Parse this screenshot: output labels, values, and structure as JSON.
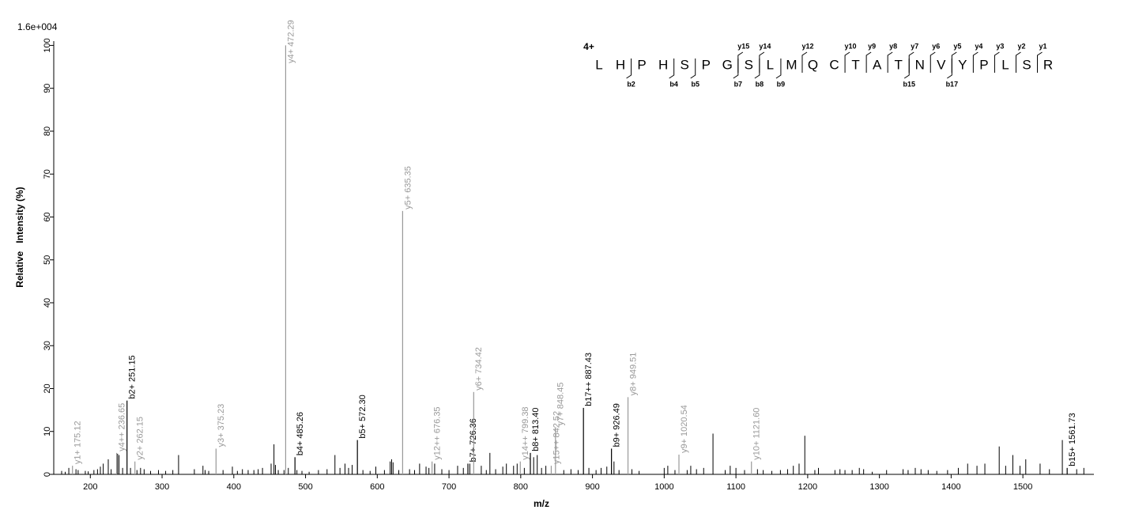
{
  "chart_data": {
    "type": "spectrum",
    "intensity_scale": "1.6e+004",
    "y_axis_label": "Relative   Intensity (%)",
    "x_axis_label": "m/z",
    "xlim": [
      149,
      1599
    ],
    "ylim": [
      0,
      101
    ],
    "xticks": [
      200,
      300,
      400,
      500,
      600,
      700,
      800,
      900,
      1000,
      1100,
      1200,
      1300,
      1400,
      1500
    ],
    "yticks": [
      0,
      10,
      20,
      30,
      40,
      50,
      60,
      70,
      80,
      90,
      100
    ],
    "peaks": {
      "x": [
        160,
        165,
        170,
        180,
        183,
        193,
        197,
        205,
        210,
        214,
        218,
        225,
        229,
        238,
        240,
        245,
        256,
        265,
        270,
        275,
        284,
        295,
        305,
        315,
        323,
        345,
        357,
        360,
        365,
        385,
        398,
        405,
        412,
        420,
        428,
        434,
        440,
        452,
        456,
        458,
        462,
        470,
        476,
        488,
        495,
        505,
        518,
        530,
        541,
        548,
        555,
        560,
        565,
        580,
        590,
        598,
        610,
        618,
        620,
        622,
        630,
        645,
        652,
        659,
        668,
        672,
        680,
        690,
        700,
        712,
        720,
        729,
        745,
        752,
        757,
        765,
        775,
        780,
        790,
        795,
        805,
        818,
        823,
        829,
        835,
        860,
        870,
        880,
        895,
        905,
        912,
        920,
        930,
        937,
        955,
        965,
        1000,
        1005,
        1015,
        1032,
        1037,
        1045,
        1055,
        1068,
        1085,
        1092,
        1100,
        1112,
        1130,
        1138,
        1150,
        1162,
        1172,
        1180,
        1188,
        1196,
        1210,
        1215,
        1238,
        1245,
        1252,
        1262,
        1272,
        1278,
        1290,
        1310,
        1333,
        1340,
        1350,
        1358,
        1368,
        1380,
        1395,
        1410,
        1423,
        1436,
        1447,
        1467,
        1476,
        1486,
        1496,
        1504,
        1524,
        1537,
        1555,
        1575,
        1585
      ],
      "values": [
        0.8,
        0.6,
        1.5,
        1.2,
        1.0,
        0.8,
        0.7,
        1.0,
        1.2,
        1.8,
        2.5,
        3.5,
        1.2,
        4.8,
        4.5,
        1.5,
        1.5,
        1.0,
        1.5,
        1.2,
        0.8,
        1.0,
        0.8,
        1.0,
        4.5,
        1.2,
        2.0,
        1.0,
        0.8,
        1.0,
        1.8,
        0.8,
        1.2,
        1.0,
        1.0,
        1.2,
        1.5,
        2.5,
        7.0,
        2.2,
        1.0,
        1.0,
        1.5,
        1.0,
        0.8,
        0.6,
        1.0,
        1.2,
        4.5,
        1.5,
        2.5,
        1.5,
        2.2,
        1.0,
        0.8,
        1.8,
        1.0,
        3.0,
        3.5,
        2.8,
        1.0,
        1.2,
        1.0,
        2.5,
        1.8,
        1.5,
        2.5,
        1.2,
        1.0,
        2.0,
        1.5,
        2.5,
        2.0,
        1.0,
        5.0,
        1.2,
        1.8,
        2.5,
        2.0,
        2.5,
        1.5,
        4.0,
        4.5,
        1.5,
        2.0,
        1.0,
        1.2,
        1.0,
        1.5,
        1.0,
        1.5,
        1.8,
        3.0,
        1.0,
        1.2,
        0.8,
        1.5,
        2.0,
        1.0,
        1.0,
        2.0,
        1.2,
        1.5,
        9.5,
        1.0,
        2.0,
        1.5,
        1.0,
        1.2,
        1.0,
        0.8,
        1.0,
        1.2,
        2.0,
        2.5,
        9.0,
        1.0,
        1.5,
        1.0,
        1.2,
        1.0,
        1.0,
        1.5,
        1.2,
        0.6,
        1.0,
        1.2,
        1.0,
        1.5,
        1.2,
        1.0,
        0.8,
        1.0,
        1.5,
        2.5,
        2.0,
        2.5,
        6.5,
        2.0,
        4.5,
        2.0,
        3.5,
        2.5,
        1.2,
        8.0,
        1.2,
        1.5
      ]
    },
    "annotations": {
      "x": [
        175.12,
        236.65,
        251.15,
        262.15,
        375.23,
        472.29,
        485.26,
        572.3,
        635.35,
        676.35,
        726.36,
        734.42,
        799.38,
        813.4,
        842.52,
        848.45,
        887.43,
        926.49,
        949.51,
        1020.54,
        1121.6,
        1561.73
      ],
      "values": [
        2.0,
        5.0,
        17.2,
        3.0,
        6.0,
        100,
        4.0,
        8.0,
        61.4,
        3.0,
        2.5,
        19.2,
        3.0,
        5.0,
        2.0,
        11.0,
        15.5,
        6.0,
        18.0,
        4.6,
        3.0,
        1.5
      ],
      "labels": [
        "y1+ 175.12",
        "y4++ 236.65",
        "b2+ 251.15",
        "y2+ 262.15",
        "y3+ 375.23",
        "y4+ 472.29",
        "b4+ 485.26",
        "b5+ 572.30",
        "y5+ 635.35",
        "y12++ 676.35",
        "b7+ 726.36",
        "y6+ 734.42",
        "y14++ 799.38",
        "b8+ 813.40",
        "y15++ 842.52",
        "y7+ 848.45",
        "b17++ 887.43",
        "b9+ 926.49",
        "y8+ 949.51",
        "y9+ 1020.54",
        "y10+ 1121.60",
        "b15+ 1561.73"
      ],
      "colors": [
        "#999999",
        "#999999",
        "#000000",
        "#999999",
        "#999999",
        "#999999",
        "#000000",
        "#000000",
        "#999999",
        "#999999",
        "#000000",
        "#999999",
        "#999999",
        "#000000",
        "#999999",
        "#999999",
        "#000000",
        "#000000",
        "#999999",
        "#999999",
        "#999999",
        "#000000"
      ]
    },
    "sequence": {
      "charge": "4+",
      "residues": [
        "L",
        "H",
        "P",
        "H",
        "S",
        "P",
        "G",
        "S",
        "L",
        "M",
        "Q",
        "C",
        "T",
        "A",
        "T",
        "N",
        "V",
        "Y",
        "P",
        "L",
        "S",
        "R"
      ],
      "y_ions": [
        "y15",
        "y14",
        "y12",
        "y10",
        "y9",
        "y8",
        "y7",
        "y6",
        "y5",
        "y4",
        "y3",
        "y2",
        "y1"
      ],
      "b_ions": [
        "b2",
        "b4",
        "b5",
        "b7",
        "b8",
        "b9",
        "b15",
        "b17"
      ]
    }
  }
}
